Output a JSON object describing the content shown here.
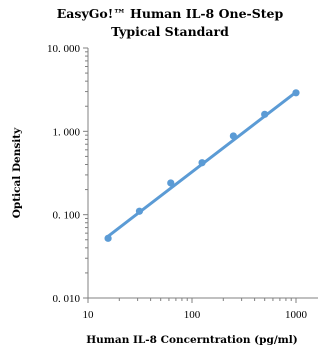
{
  "chart_data": {
    "type": "scatter",
    "title": [
      "EasyGo!™ Human IL-8  One-Step",
      "Typical Standard"
    ],
    "xlabel": "Human IL-8 Concerntration (pg/ml)",
    "ylabel": "Optical Density",
    "x_scale": "log",
    "y_scale": "log",
    "xlim": [
      10,
      1000
    ],
    "ylim": [
      0.01,
      10
    ],
    "x_ticks": [
      10,
      100,
      1000
    ],
    "x_tick_labels": [
      "10",
      "100",
      "1000"
    ],
    "y_ticks": [
      0.01,
      0.1,
      1,
      10
    ],
    "y_tick_labels": [
      "0. 010",
      "0. 100",
      "1. 000",
      "10. 000"
    ],
    "grid": false,
    "legend": "none",
    "color": "#5b9bd5",
    "series": [
      {
        "x": [
          15.6,
          31.25,
          62.5,
          125,
          250,
          500,
          1000
        ],
        "y": [
          0.052,
          0.11,
          0.24,
          0.42,
          0.88,
          1.6,
          2.9
        ]
      }
    ],
    "trendline": {
      "x": [
        15.6,
        1000
      ],
      "y": [
        0.055,
        2.95
      ]
    }
  }
}
